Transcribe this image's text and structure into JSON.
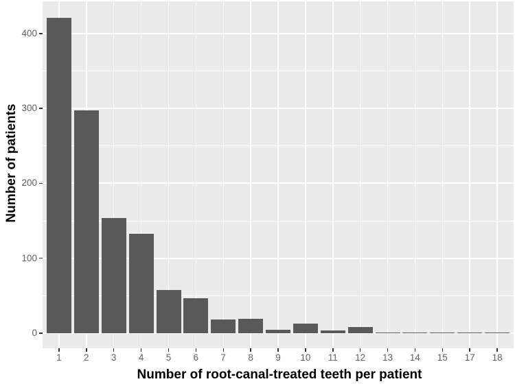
{
  "chart_data": {
    "type": "bar",
    "title": "",
    "xlabel": "Number of root-canal-treated teeth per patient",
    "ylabel": "Number of patients",
    "categories": [
      "1",
      "2",
      "3",
      "4",
      "5",
      "6",
      "7",
      "8",
      "9",
      "10",
      "11",
      "12",
      "13",
      "14",
      "15",
      "17",
      "18"
    ],
    "values": [
      421,
      297,
      154,
      133,
      58,
      47,
      18,
      19,
      5,
      13,
      4,
      8,
      1,
      1,
      1,
      1,
      1
    ],
    "ylim": [
      0,
      440
    ],
    "yticks": [
      0,
      100,
      200,
      300,
      400
    ],
    "yticks_minor": [
      50,
      150,
      250,
      350
    ],
    "grid": "major+minor, white on gray panel",
    "legend": "none",
    "x_note": "category 16 is absent from the axis",
    "colors": {
      "bar_fill": "#595959",
      "panel_background": "#EBEBEB",
      "gridline": "#FFFFFF",
      "tick_label": "#616161",
      "tick_mark": "#333333",
      "axis_title": "#000000",
      "figure_background": "#FFFFFF"
    }
  }
}
